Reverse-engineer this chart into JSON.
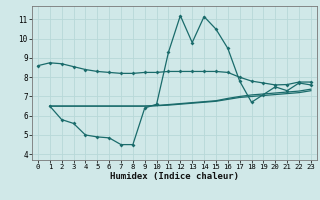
{
  "title": "",
  "xlabel": "Humidex (Indice chaleur)",
  "xlim": [
    -0.5,
    23.5
  ],
  "ylim": [
    3.7,
    11.7
  ],
  "yticks": [
    4,
    5,
    6,
    7,
    8,
    9,
    10,
    11
  ],
  "xticks": [
    0,
    1,
    2,
    3,
    4,
    5,
    6,
    7,
    8,
    9,
    10,
    11,
    12,
    13,
    14,
    15,
    16,
    17,
    18,
    19,
    20,
    21,
    22,
    23
  ],
  "background_color": "#d0e8e8",
  "grid_color": "#b8d8d8",
  "line_color": "#1a6b6b",
  "line1_x": [
    0,
    1,
    2,
    3,
    4,
    5,
    6,
    7,
    8,
    9,
    10,
    11,
    12,
    13,
    14,
    15,
    16,
    17,
    18,
    19,
    20,
    21,
    22,
    23
  ],
  "line1_y": [
    8.6,
    8.75,
    8.7,
    8.55,
    8.4,
    8.3,
    8.25,
    8.2,
    8.2,
    8.25,
    8.25,
    8.3,
    8.3,
    8.3,
    8.3,
    8.3,
    8.25,
    8.0,
    7.8,
    7.7,
    7.6,
    7.62,
    7.75,
    7.75
  ],
  "line2_x": [
    1,
    2,
    3,
    4,
    5,
    6,
    7,
    8,
    9,
    10,
    11,
    12,
    13,
    14,
    15,
    16,
    17,
    18,
    19,
    20,
    21,
    22,
    23
  ],
  "line2_y": [
    6.5,
    5.8,
    5.6,
    5.0,
    4.9,
    4.85,
    4.5,
    4.5,
    6.4,
    6.6,
    9.3,
    11.2,
    9.8,
    11.15,
    10.5,
    9.5,
    7.8,
    6.7,
    7.1,
    7.5,
    7.3,
    7.7,
    7.6
  ],
  "line3_x": [
    1,
    2,
    3,
    4,
    5,
    6,
    7,
    8,
    9,
    10,
    11,
    12,
    13,
    14,
    15,
    16,
    17,
    18,
    19,
    20,
    21,
    22,
    23
  ],
  "line3_y": [
    6.5,
    6.5,
    6.5,
    6.5,
    6.5,
    6.5,
    6.5,
    6.5,
    6.5,
    6.52,
    6.55,
    6.6,
    6.65,
    6.7,
    6.75,
    6.85,
    6.95,
    7.0,
    7.05,
    7.1,
    7.15,
    7.2,
    7.3
  ],
  "line4_x": [
    1,
    2,
    3,
    4,
    5,
    6,
    7,
    8,
    9,
    10,
    11,
    12,
    13,
    14,
    15,
    16,
    17,
    18,
    19,
    20,
    21,
    22,
    23
  ],
  "line4_y": [
    6.5,
    6.5,
    6.5,
    6.5,
    6.5,
    6.5,
    6.5,
    6.5,
    6.5,
    6.53,
    6.58,
    6.63,
    6.68,
    6.73,
    6.78,
    6.9,
    7.0,
    7.08,
    7.13,
    7.18,
    7.23,
    7.28,
    7.38
  ]
}
